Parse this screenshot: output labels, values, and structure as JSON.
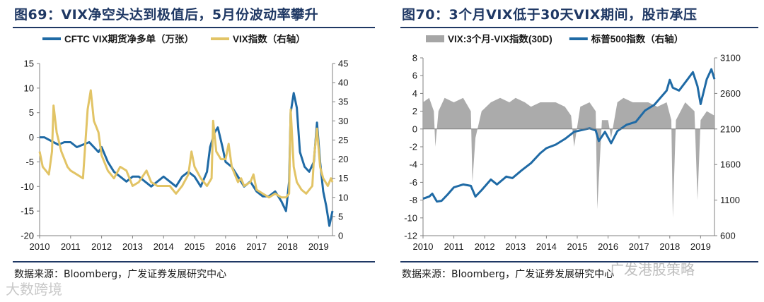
{
  "watermarks": {
    "left": "大数跨境",
    "right": "广发港股策略"
  },
  "panels": [
    {
      "title": "图69：VIX净空头达到极值后，5月份波动率攀升",
      "source": "数据来源：Bloomberg，广发证券发展研究中心",
      "chart_data": {
        "type": "line",
        "title": "图69：VIX净空头达到极值后，5月份波动率攀升",
        "xlabel": "",
        "ylabel": "",
        "x_ticks": [
          "2010",
          "2011",
          "2012",
          "2013",
          "2014",
          "2015",
          "2016",
          "2017",
          "2018",
          "2019"
        ],
        "x_range": [
          2010.0,
          2019.45
        ],
        "y_left_ticks": [
          15,
          10,
          5,
          0,
          -5,
          -10,
          -15,
          -20
        ],
        "y_left_range": [
          -20,
          15
        ],
        "y_right_ticks": [
          45,
          40,
          35,
          30,
          25,
          20,
          15,
          10,
          5,
          0
        ],
        "y_right_range": [
          0,
          45
        ],
        "grid": false,
        "legend_position": "top",
        "series": [
          {
            "name": "CFTC VIX期货净多单（万张）",
            "axis": "left",
            "color": "#1f6aa5",
            "x": [
              2010.0,
              2010.15,
              2010.3,
              2010.45,
              2010.6,
              2010.8,
              2011.0,
              2011.2,
              2011.4,
              2011.6,
              2011.75,
              2011.9,
              2012.0,
              2012.2,
              2012.4,
              2012.6,
              2012.8,
              2013.0,
              2013.2,
              2013.4,
              2013.6,
              2013.8,
              2014.0,
              2014.2,
              2014.4,
              2014.6,
              2014.8,
              2015.0,
              2015.2,
              2015.4,
              2015.5,
              2015.65,
              2015.75,
              2015.9,
              2016.0,
              2016.2,
              2016.4,
              2016.6,
              2016.8,
              2017.0,
              2017.2,
              2017.4,
              2017.6,
              2017.8,
              2017.95,
              2018.05,
              2018.1,
              2018.2,
              2018.3,
              2018.4,
              2018.55,
              2018.7,
              2018.85,
              2018.95,
              2019.05,
              2019.15,
              2019.25,
              2019.35,
              2019.45
            ],
            "values": [
              0,
              0,
              -0.5,
              -1,
              -1.5,
              -1,
              -1,
              -2,
              -1.5,
              -1,
              -2,
              -3,
              -2,
              -5,
              -7,
              -8,
              -9,
              -8,
              -8,
              -9,
              -10,
              -9,
              -8,
              -9,
              -10,
              -8,
              -7,
              -8,
              -10,
              -7,
              -2,
              1,
              2,
              -2,
              -5,
              -6,
              -8,
              -10,
              -9,
              -11,
              -12,
              -12,
              -11,
              -13,
              -15,
              -9,
              5,
              9,
              6,
              -3,
              -6,
              -7,
              -5,
              3,
              -5,
              -11,
              -14,
              -18,
              -15
            ]
          },
          {
            "name": "VIX指数（右轴）",
            "axis": "right",
            "color": "#e2c466",
            "x": [
              2010.0,
              2010.1,
              2010.2,
              2010.3,
              2010.4,
              2010.45,
              2010.55,
              2010.7,
              2010.9,
              2011.0,
              2011.2,
              2011.4,
              2011.55,
              2011.65,
              2011.75,
              2011.9,
              2012.0,
              2012.2,
              2012.4,
              2012.6,
              2012.8,
              2013.0,
              2013.2,
              2013.45,
              2013.6,
              2013.8,
              2014.0,
              2014.2,
              2014.4,
              2014.6,
              2014.8,
              2014.9,
              2015.0,
              2015.2,
              2015.4,
              2015.55,
              2015.6,
              2015.7,
              2015.85,
              2016.0,
              2016.1,
              2016.2,
              2016.4,
              2016.5,
              2016.6,
              2016.8,
              2016.9,
              2017.0,
              2017.2,
              2017.4,
              2017.6,
              2017.8,
              2017.95,
              2018.05,
              2018.1,
              2018.2,
              2018.3,
              2018.45,
              2018.6,
              2018.8,
              2018.85,
              2018.95,
              2019.05,
              2019.15,
              2019.3,
              2019.4,
              2019.45
            ],
            "values": [
              22,
              18,
              17,
              16,
              22,
              34,
              27,
              22,
              18,
              17,
              16,
              15,
              33,
              38,
              30,
              27,
              21,
              17,
              15,
              18,
              17,
              13,
              14,
              17,
              14,
              13,
              13,
              13,
              11,
              13,
              16,
              22,
              18,
              15,
              13,
              15,
              30,
              22,
              20,
              20,
              24,
              18,
              14,
              15,
              13,
              14,
              16,
              12,
              11,
              10,
              11,
              10,
              10,
              11,
              33,
              18,
              14,
              12,
              11,
              13,
              20,
              28,
              18,
              15,
              13,
              15,
              14
            ]
          }
        ]
      }
    },
    {
      "title": "图70：3个月VIX低于30天VIX期间，股市承压",
      "source": "数据来源：Bloomberg，广发证券发展研究中心",
      "chart_data": {
        "type": "area",
        "title": "图70：3个月VIX低于30天VIX期间，股市承压",
        "xlabel": "",
        "ylabel": "",
        "x_ticks": [
          "2010",
          "2011",
          "2012",
          "2013",
          "2014",
          "2015",
          "2016",
          "2017",
          "2018",
          "2019"
        ],
        "x_range": [
          2010.0,
          2019.45
        ],
        "y_left_ticks": [
          8,
          6,
          4,
          2,
          0,
          -2,
          -4,
          -6,
          -8,
          -10,
          -12
        ],
        "y_left_range": [
          -12,
          8
        ],
        "y_right_ticks": [
          3100,
          2600,
          2100,
          1600,
          1100,
          600
        ],
        "y_right_range": [
          600,
          3100
        ],
        "grid": false,
        "legend_position": "top",
        "series": [
          {
            "name": "VIX:3个月-VIX指数(30D)",
            "axis": "left",
            "type": "area",
            "color": "#a6a6a6",
            "x": [
              2010.0,
              2010.2,
              2010.35,
              2010.4,
              2010.5,
              2010.7,
              2011.0,
              2011.3,
              2011.55,
              2011.6,
              2011.7,
              2011.9,
              2012.2,
              2012.5,
              2012.8,
              2013.0,
              2013.3,
              2013.5,
              2013.8,
              2014.0,
              2014.3,
              2014.6,
              2014.8,
              2014.9,
              2015.1,
              2015.4,
              2015.6,
              2015.65,
              2015.8,
              2016.0,
              2016.1,
              2016.3,
              2016.5,
              2016.8,
              2017.0,
              2017.3,
              2017.6,
              2017.9,
              2018.05,
              2018.1,
              2018.2,
              2018.5,
              2018.8,
              2018.9,
              2019.0,
              2019.2,
              2019.45
            ],
            "values": [
              3,
              3.5,
              2,
              -2,
              2,
              3.5,
              3,
              3.5,
              2,
              -6,
              -1,
              2,
              3,
              3.5,
              3,
              3.5,
              3,
              2.5,
              3,
              3,
              3,
              2.5,
              1.5,
              -2,
              2.5,
              3,
              2,
              -9,
              1,
              1,
              -1,
              3,
              3.5,
              3,
              3,
              3,
              2.5,
              3,
              1,
              -10,
              1,
              3,
              2,
              -8,
              1,
              2,
              1.5
            ]
          },
          {
            "name": "标普500指数（右轴）",
            "axis": "right",
            "color": "#1f6aa5",
            "x": [
              2010.0,
              2010.2,
              2010.3,
              2010.45,
              2010.6,
              2010.8,
              2011.0,
              2011.3,
              2011.55,
              2011.7,
              2011.9,
              2012.2,
              2012.4,
              2012.7,
              2012.9,
              2013.2,
              2013.5,
              2013.8,
              2014.0,
              2014.3,
              2014.6,
              2014.9,
              2015.2,
              2015.4,
              2015.6,
              2015.7,
              2015.9,
              2016.1,
              2016.3,
              2016.6,
              2016.9,
              2017.2,
              2017.5,
              2017.9,
              2018.0,
              2018.1,
              2018.3,
              2018.6,
              2018.75,
              2018.9,
              2019.0,
              2019.2,
              2019.35,
              2019.45
            ],
            "values": [
              1120,
              1150,
              1190,
              1080,
              1090,
              1180,
              1280,
              1320,
              1300,
              1150,
              1240,
              1390,
              1320,
              1430,
              1410,
              1520,
              1620,
              1760,
              1830,
              1880,
              1960,
              2060,
              2090,
              2110,
              2080,
              1930,
              2060,
              1900,
              2070,
              2160,
              2200,
              2360,
              2440,
              2640,
              2790,
              2680,
              2640,
              2810,
              2900,
              2700,
              2450,
              2800,
              2940,
              2800
            ]
          }
        ]
      }
    }
  ]
}
